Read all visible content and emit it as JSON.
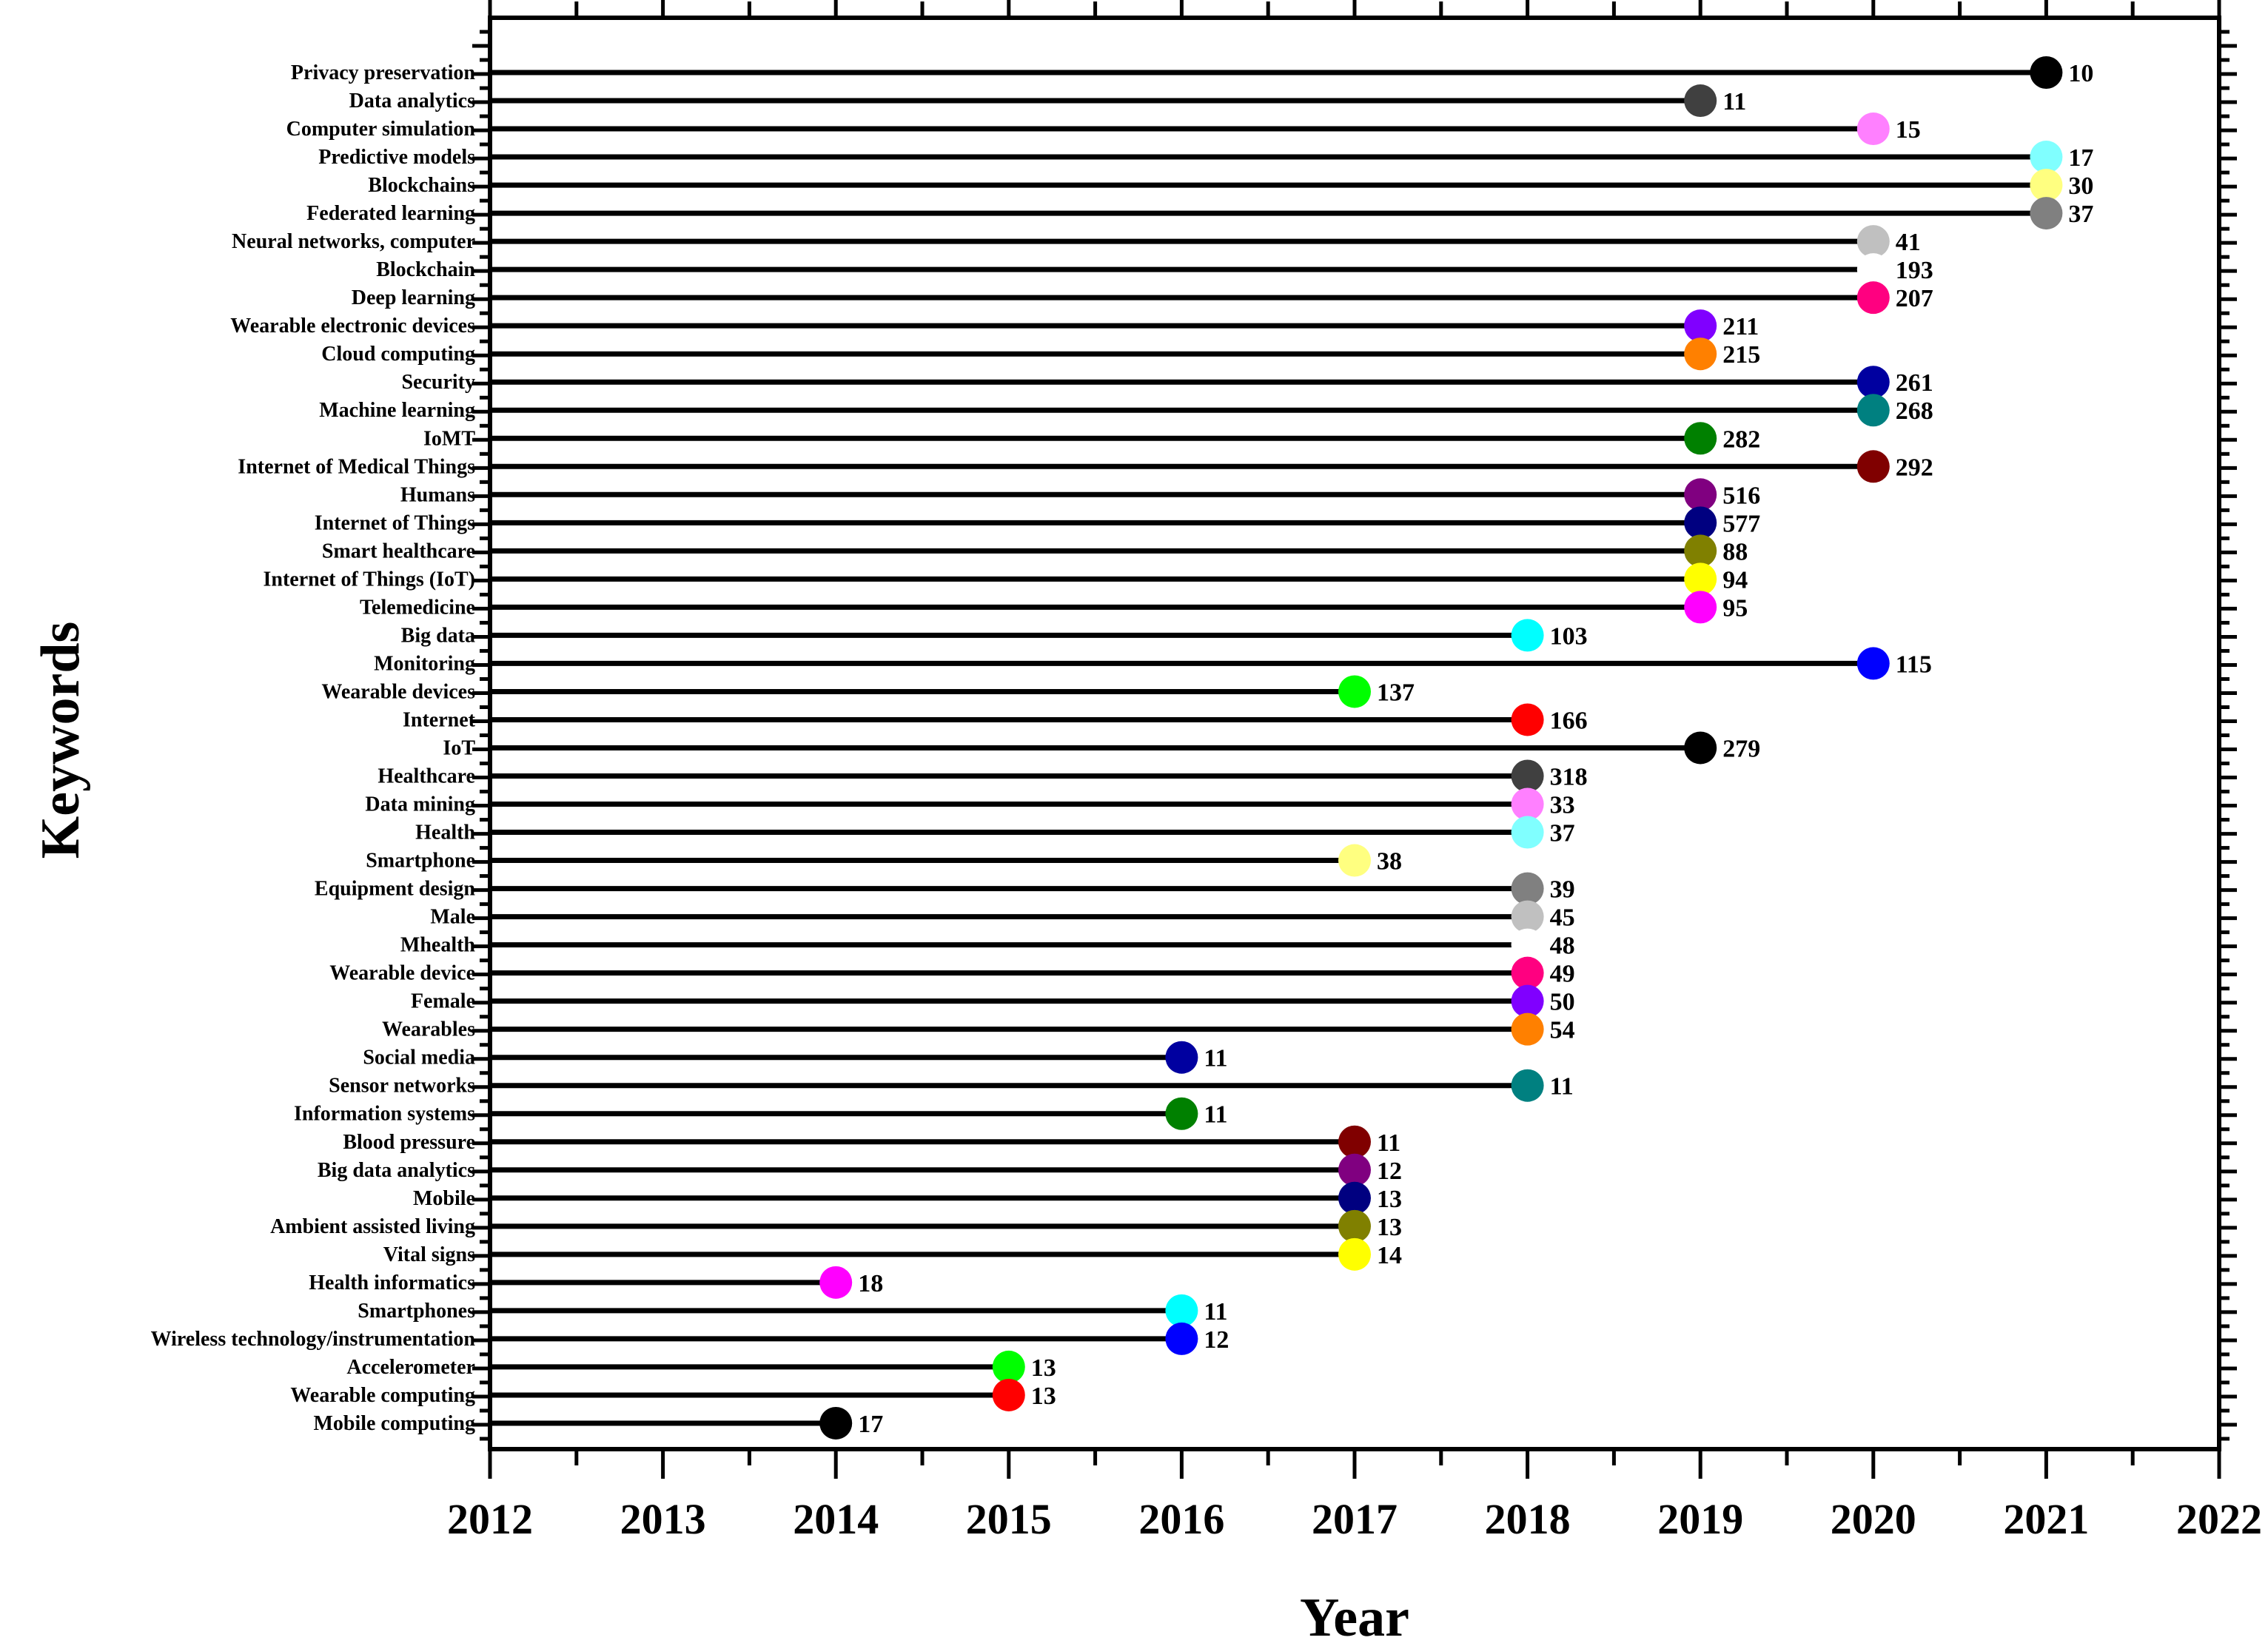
{
  "chart_data": {
    "type": "timeline-dot",
    "xlabel": "Year",
    "ylabel": "Keywords",
    "xlim": [
      2012,
      2022
    ],
    "xticks": [
      "2012",
      "2013",
      "2014",
      "2015",
      "2016",
      "2017",
      "2018",
      "2019",
      "2020",
      "2021",
      "2022"
    ],
    "series": [
      {
        "keyword": "Privacy preservation",
        "year": 2021,
        "count": "10",
        "color": "#000000"
      },
      {
        "keyword": "Data analytics",
        "year": 2019,
        "count": "11",
        "color": "#404040"
      },
      {
        "keyword": "Computer simulation",
        "year": 2020,
        "count": "15",
        "color": "#FF80FF"
      },
      {
        "keyword": "Predictive models",
        "year": 2021,
        "count": "17",
        "color": "#80FFFF"
      },
      {
        "keyword": "Blockchains",
        "year": 2021,
        "count": "30",
        "color": "#FFFF80"
      },
      {
        "keyword": "Federated learning",
        "year": 2021,
        "count": "37",
        "color": "#808080"
      },
      {
        "keyword": "Neural networks, computer",
        "year": 2020,
        "count": "41",
        "color": "#C0C0C0"
      },
      {
        "keyword": "Blockchain",
        "year": 2020,
        "count": "193",
        "color": "#FFFFFF"
      },
      {
        "keyword": "Deep learning",
        "year": 2020,
        "count": "207",
        "color": "#FF0080"
      },
      {
        "keyword": "Wearable electronic devices",
        "year": 2019,
        "count": "211",
        "color": "#8000FF"
      },
      {
        "keyword": "Cloud computing",
        "year": 2019,
        "count": "215",
        "color": "#FF8000"
      },
      {
        "keyword": "Security",
        "year": 2020,
        "count": "261",
        "color": "#0000A0"
      },
      {
        "keyword": "Machine learning",
        "year": 2020,
        "count": "268",
        "color": "#008080"
      },
      {
        "keyword": "IoMT",
        "year": 2019,
        "count": "282",
        "color": "#008000"
      },
      {
        "keyword": "Internet of Medical Things",
        "year": 2020,
        "count": "292",
        "color": "#800000"
      },
      {
        "keyword": "Humans",
        "year": 2019,
        "count": "516",
        "color": "#800080"
      },
      {
        "keyword": "Internet of Things",
        "year": 2019,
        "count": "577",
        "color": "#000080"
      },
      {
        "keyword": "Smart healthcare",
        "year": 2019,
        "count": "88",
        "color": "#808000"
      },
      {
        "keyword": "Internet of Things (IoT)",
        "year": 2019,
        "count": "94",
        "color": "#FFFF00"
      },
      {
        "keyword": "Telemedicine",
        "year": 2019,
        "count": "95",
        "color": "#FF00FF"
      },
      {
        "keyword": "Big data",
        "year": 2018,
        "count": "103",
        "color": "#00FFFF"
      },
      {
        "keyword": "Monitoring",
        "year": 2020,
        "count": "115",
        "color": "#0000FF"
      },
      {
        "keyword": "Wearable devices",
        "year": 2017,
        "count": "137",
        "color": "#00FF00"
      },
      {
        "keyword": "Internet",
        "year": 2018,
        "count": "166",
        "color": "#FF0000"
      },
      {
        "keyword": "IoT",
        "year": 2019,
        "count": "279",
        "color": "#000000"
      },
      {
        "keyword": "Healthcare",
        "year": 2018,
        "count": "318",
        "color": "#404040"
      },
      {
        "keyword": "Data mining",
        "year": 2018,
        "count": "33",
        "color": "#FF80FF"
      },
      {
        "keyword": "Health",
        "year": 2018,
        "count": "37",
        "color": "#80FFFF"
      },
      {
        "keyword": "Smartphone",
        "year": 2017,
        "count": "38",
        "color": "#FFFF80"
      },
      {
        "keyword": "Equipment design",
        "year": 2018,
        "count": "39",
        "color": "#808080"
      },
      {
        "keyword": "Male",
        "year": 2018,
        "count": "45",
        "color": "#C0C0C0"
      },
      {
        "keyword": "Mhealth",
        "year": 2018,
        "count": "48",
        "color": "#FFFFFF"
      },
      {
        "keyword": "Wearable device",
        "year": 2018,
        "count": "49",
        "color": "#FF0080"
      },
      {
        "keyword": "Female",
        "year": 2018,
        "count": "50",
        "color": "#8000FF"
      },
      {
        "keyword": "Wearables",
        "year": 2018,
        "count": "54",
        "color": "#FF8000"
      },
      {
        "keyword": "Social media",
        "year": 2016,
        "count": "11",
        "color": "#0000A0"
      },
      {
        "keyword": "Sensor networks",
        "year": 2018,
        "count": "11",
        "color": "#008080"
      },
      {
        "keyword": "Information systems",
        "year": 2016,
        "count": "11",
        "color": "#008000"
      },
      {
        "keyword": "Blood pressure",
        "year": 2017,
        "count": "11",
        "color": "#800000"
      },
      {
        "keyword": "Big data analytics",
        "year": 2017,
        "count": "12",
        "color": "#800080"
      },
      {
        "keyword": "Mobile",
        "year": 2017,
        "count": "13",
        "color": "#000080"
      },
      {
        "keyword": "Ambient assisted living",
        "year": 2017,
        "count": "13",
        "color": "#808000"
      },
      {
        "keyword": "Vital signs",
        "year": 2017,
        "count": "14",
        "color": "#FFFF00"
      },
      {
        "keyword": "Health informatics",
        "year": 2014,
        "count": "18",
        "color": "#FF00FF"
      },
      {
        "keyword": "Smartphones",
        "year": 2016,
        "count": "11",
        "color": "#00FFFF"
      },
      {
        "keyword": "Wireless technology/instrumentation",
        "year": 2016,
        "count": "12",
        "color": "#0000FF"
      },
      {
        "keyword": "Accelerometer",
        "year": 2015,
        "count": "13",
        "color": "#00FF00"
      },
      {
        "keyword": "Wearable computing",
        "year": 2015,
        "count": "13",
        "color": "#FF0000"
      },
      {
        "keyword": "Mobile computing",
        "year": 2014,
        "count": "17",
        "color": "#000000"
      }
    ]
  }
}
